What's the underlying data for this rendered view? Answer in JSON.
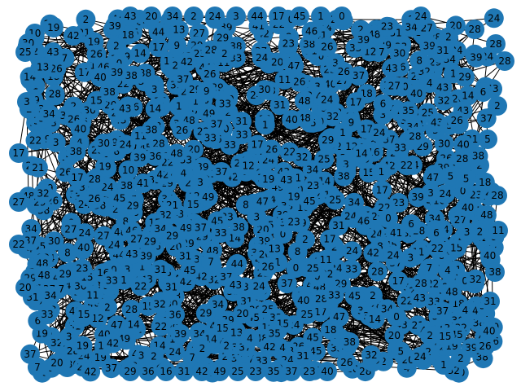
{
  "diagram": {
    "type": "network-graph",
    "node_color": "#1f77b4",
    "edge_color": "#000000",
    "label_color": "#000000",
    "visible_labels": [
      "27",
      "22",
      "2",
      "28",
      "11",
      "29",
      "36",
      "16",
      "31",
      "42",
      "49",
      "25",
      "23",
      "35",
      "37",
      "23",
      "40",
      "43",
      "20",
      "34",
      "2",
      "24",
      "3",
      "44",
      "17",
      "45",
      "1",
      "0",
      "38",
      "14",
      "39",
      "21",
      "15",
      "32",
      "26",
      "47",
      "41",
      "30",
      "33",
      "18",
      "12",
      "13",
      "19",
      "10",
      "46",
      "48",
      "5",
      "6",
      "7",
      "8",
      "9",
      "4",
      "2",
      "29",
      "24",
      "39",
      "26",
      "22",
      "24",
      "27",
      "43",
      "45",
      "37",
      "37",
      "34",
      "34",
      "38",
      "3",
      "43",
      "42",
      "48",
      "30",
      "29",
      "33",
      "14",
      "19",
      "40",
      "39",
      "33",
      "29",
      "26",
      "0",
      "34",
      "40",
      "25",
      "28",
      "26",
      "24",
      "2",
      "1",
      "31",
      "38",
      "20",
      "33",
      "15",
      "32",
      "24",
      "28",
      "31",
      "42",
      "3",
      "17"
    ]
  }
}
